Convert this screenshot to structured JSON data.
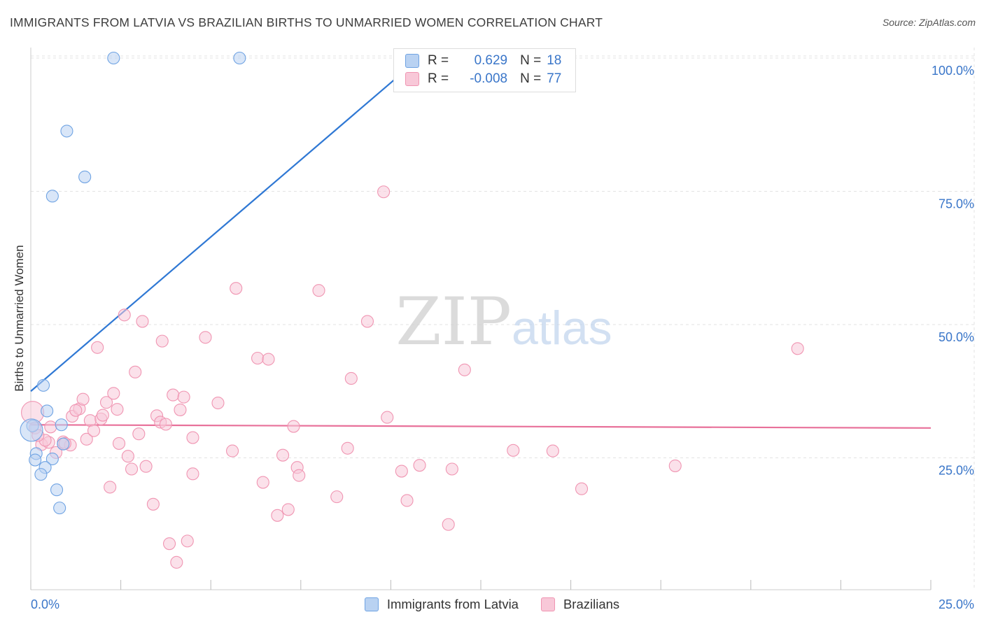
{
  "chart_data": {
    "type": "scatter",
    "title": "IMMIGRANTS FROM LATVIA VS BRAZILIAN BIRTHS TO UNMARRIED WOMEN CORRELATION CHART",
    "source": "Source: ZipAtlas.com",
    "xlabel": "",
    "ylabel": "Births to Unmarried Women",
    "xlim": [
      0,
      25
    ],
    "ylim": [
      0,
      100
    ],
    "x_tick_labels": [
      "0.0%",
      "25.0%"
    ],
    "y_tick_labels": [
      "25.0%",
      "50.0%",
      "75.0%",
      "100.0%"
    ],
    "y_ticks": [
      25,
      50,
      75,
      100
    ],
    "grid": true,
    "watermark": "ZIPatlas",
    "legend_position": "top-center",
    "series": [
      {
        "name": "Immigrants from Latvia",
        "color": "#6fa3e3",
        "fill": "#b9d2f2",
        "line_color": "#2f78d4",
        "r_label": "R =",
        "r_value": "0.629",
        "n_label": "N =",
        "n_value": "18",
        "trend": {
          "x0": 0.0,
          "y0": 37.5,
          "x1": 10.8,
          "y1": 100.0
        },
        "points": [
          {
            "x": 2.3,
            "y": 100.0
          },
          {
            "x": 5.8,
            "y": 100.0
          },
          {
            "x": 1.0,
            "y": 86.3
          },
          {
            "x": 1.5,
            "y": 77.7
          },
          {
            "x": 0.6,
            "y": 74.1
          },
          {
            "x": 0.35,
            "y": 38.6
          },
          {
            "x": 0.45,
            "y": 33.8
          },
          {
            "x": 0.05,
            "y": 31.0
          },
          {
            "x": 0.85,
            "y": 31.2
          },
          {
            "x": 0.9,
            "y": 27.6
          },
          {
            "x": 0.15,
            "y": 25.8
          },
          {
            "x": 0.12,
            "y": 24.6
          },
          {
            "x": 0.6,
            "y": 24.8
          },
          {
            "x": 0.4,
            "y": 23.2
          },
          {
            "x": 0.28,
            "y": 21.9
          },
          {
            "x": 0.72,
            "y": 19.0
          },
          {
            "x": 0.8,
            "y": 15.6
          },
          {
            "x": 0.02,
            "y": 30.2
          }
        ]
      },
      {
        "name": "Brazilians",
        "color": "#f095b2",
        "fill": "#f8c8d8",
        "line_color": "#e8719a",
        "r_label": "R =",
        "r_value": "-0.008",
        "n_label": "N =",
        "n_value": "77",
        "trend": {
          "x0": 0.0,
          "y0": 31.2,
          "x1": 25.0,
          "y1": 30.6
        },
        "points": [
          {
            "x": 0.05,
            "y": 33.5
          },
          {
            "x": 0.12,
            "y": 30.6
          },
          {
            "x": 0.3,
            "y": 27.5
          },
          {
            "x": 0.5,
            "y": 27.9
          },
          {
            "x": 0.55,
            "y": 30.8
          },
          {
            "x": 0.7,
            "y": 26.0
          },
          {
            "x": 0.9,
            "y": 28.0
          },
          {
            "x": 1.1,
            "y": 27.4
          },
          {
            "x": 1.15,
            "y": 32.8
          },
          {
            "x": 1.35,
            "y": 34.2
          },
          {
            "x": 1.45,
            "y": 36.0
          },
          {
            "x": 1.55,
            "y": 28.5
          },
          {
            "x": 1.65,
            "y": 32.0
          },
          {
            "x": 1.75,
            "y": 30.1
          },
          {
            "x": 1.85,
            "y": 45.7
          },
          {
            "x": 1.95,
            "y": 32.3
          },
          {
            "x": 2.0,
            "y": 33.0
          },
          {
            "x": 2.1,
            "y": 35.4
          },
          {
            "x": 2.2,
            "y": 19.5
          },
          {
            "x": 2.3,
            "y": 37.1
          },
          {
            "x": 2.4,
            "y": 34.1
          },
          {
            "x": 2.45,
            "y": 27.7
          },
          {
            "x": 2.6,
            "y": 51.8
          },
          {
            "x": 2.7,
            "y": 25.3
          },
          {
            "x": 2.8,
            "y": 22.9
          },
          {
            "x": 2.9,
            "y": 41.1
          },
          {
            "x": 3.0,
            "y": 29.5
          },
          {
            "x": 3.1,
            "y": 50.6
          },
          {
            "x": 3.2,
            "y": 23.4
          },
          {
            "x": 3.4,
            "y": 16.3
          },
          {
            "x": 3.5,
            "y": 32.9
          },
          {
            "x": 3.6,
            "y": 31.7
          },
          {
            "x": 3.65,
            "y": 46.9
          },
          {
            "x": 3.75,
            "y": 31.3
          },
          {
            "x": 3.85,
            "y": 8.9
          },
          {
            "x": 3.95,
            "y": 36.8
          },
          {
            "x": 4.05,
            "y": 5.4
          },
          {
            "x": 4.15,
            "y": 34.0
          },
          {
            "x": 4.25,
            "y": 36.4
          },
          {
            "x": 4.35,
            "y": 9.4
          },
          {
            "x": 4.5,
            "y": 22.0
          },
          {
            "x": 4.5,
            "y": 28.8
          },
          {
            "x": 4.85,
            "y": 47.6
          },
          {
            "x": 5.2,
            "y": 35.3
          },
          {
            "x": 5.6,
            "y": 26.3
          },
          {
            "x": 5.7,
            "y": 56.8
          },
          {
            "x": 6.3,
            "y": 43.7
          },
          {
            "x": 6.45,
            "y": 20.4
          },
          {
            "x": 6.6,
            "y": 43.5
          },
          {
            "x": 6.85,
            "y": 14.2
          },
          {
            "x": 7.0,
            "y": 25.5
          },
          {
            "x": 7.15,
            "y": 15.3
          },
          {
            "x": 7.3,
            "y": 30.9
          },
          {
            "x": 7.4,
            "y": 23.2
          },
          {
            "x": 7.45,
            "y": 21.7
          },
          {
            "x": 8.0,
            "y": 56.4
          },
          {
            "x": 8.5,
            "y": 17.7
          },
          {
            "x": 8.8,
            "y": 26.8
          },
          {
            "x": 8.9,
            "y": 39.9
          },
          {
            "x": 9.35,
            "y": 50.6
          },
          {
            "x": 9.8,
            "y": 74.9
          },
          {
            "x": 9.9,
            "y": 32.6
          },
          {
            "x": 10.3,
            "y": 22.5
          },
          {
            "x": 10.45,
            "y": 17.0
          },
          {
            "x": 10.8,
            "y": 23.6
          },
          {
            "x": 11.6,
            "y": 12.5
          },
          {
            "x": 11.7,
            "y": 22.9
          },
          {
            "x": 12.05,
            "y": 41.5
          },
          {
            "x": 13.4,
            "y": 26.4
          },
          {
            "x": 14.5,
            "y": 26.3
          },
          {
            "x": 15.3,
            "y": 19.2
          },
          {
            "x": 17.9,
            "y": 23.5
          },
          {
            "x": 21.3,
            "y": 45.5
          },
          {
            "x": 0.4,
            "y": 28.3
          },
          {
            "x": 1.25,
            "y": 33.9
          },
          {
            "x": 0.95,
            "y": 27.7
          },
          {
            "x": 0.2,
            "y": 29.2
          }
        ]
      }
    ]
  }
}
